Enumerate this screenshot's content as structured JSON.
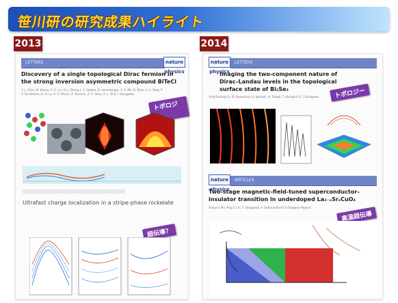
{
  "banner": {
    "title": "笹川研の研究成果ハイライト"
  },
  "years": {
    "left": "2013",
    "right": "2014"
  },
  "left": {
    "journal_tag": "LETTERS",
    "journal_logo": "nature physics",
    "paper_title": "Discovery of a single topological Dirac fermion in the strong inversion asymmetric compound BiTeCl",
    "authors": "Y. L. Chen, M. Kanou, Z. K. Liu, H. J. Zhang, J. A. Sobota, D. Leuenberger, S. K. Mo, B. Zhou, S.-L. Yang, P. S. Kirchmann, D. H. Lu, R. G. Moore, Z. Hussain, Z. X. Shen, X. L. Qi & T. Sasagawa",
    "sticker1": "トポロジー",
    "second_title": "Ultrafast charge localization in a stripe-phase nickelate",
    "sticker2": "超伝導？"
  },
  "right": {
    "journal_tag": "LETTERS",
    "journal_logo": "nature physics",
    "paper_title": "Imaging the two-component nature of Dirac–Landau levels in the topological surface state of Bi₂Se₃",
    "authors": "Ying-Shuang Fu, M. Kawamura, K. Igarashi, H. Takagi, T. Hanaguri & T. Sasagawa",
    "sticker1": "トポロジー",
    "journal_tag2": "ARTICLES",
    "journal_logo2": "nature physics",
    "paper_title2": "Two-stage magnetic-field-tuned superconductor–insulator transition in underdoped La₂₋ₓSrₓCuO₄",
    "authors2": "Xiaoyan Shi, Ping V. Lin, T. Sasagawa, V. Dobrosavljević & Dragana Popović",
    "sticker2": "高温超伝導"
  },
  "colors": {
    "accent": "#8a1a17",
    "banner": "#2f6fd6",
    "sticker": "#7b3aa8"
  }
}
